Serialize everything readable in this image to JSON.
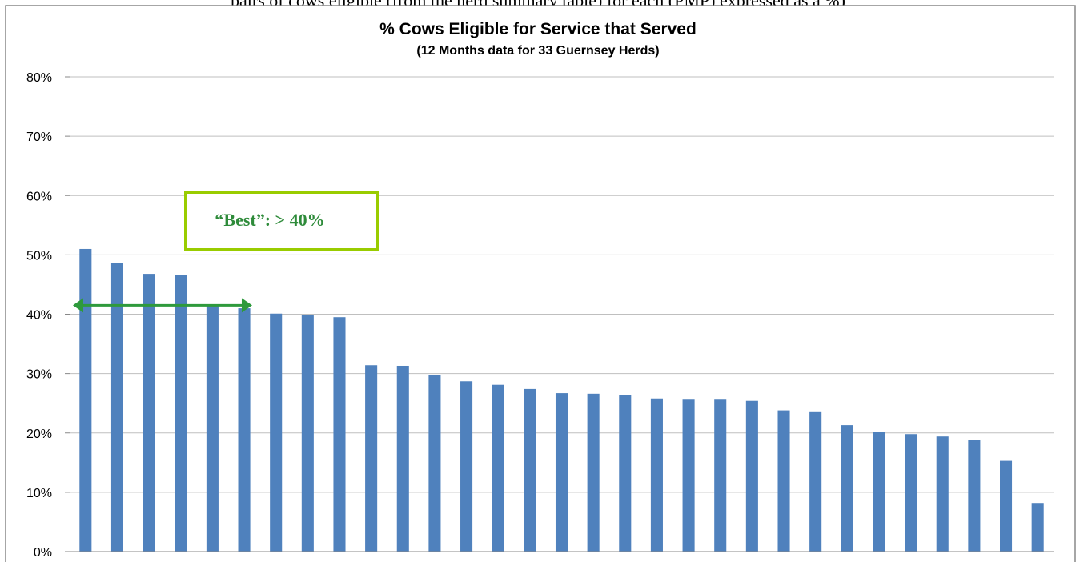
{
  "top_caption": "pairs of cows eligible (from the herd summary table) for each (PMP) expressed as a %)",
  "annotation": {
    "text": "“Best”: > 40%",
    "color": "#2e8b3a",
    "box_color": "#99cc00"
  },
  "colors": {
    "bar": "#4f81bd",
    "grid": "#bfbfbf",
    "arrow": "#2e9a3c"
  },
  "chart_data": {
    "type": "bar",
    "title": "% Cows Eligible for Service that Served",
    "subtitle": "(12 Months  data for 33 Guernsey  Herds)",
    "xlabel": "",
    "ylabel": "",
    "ylim": [
      0,
      80
    ],
    "ytick_step": 10,
    "ytick_labels": [
      "0%",
      "10%",
      "20%",
      "30%",
      "40%",
      "50%",
      "60%",
      "70%",
      "80%"
    ],
    "grid": true,
    "values": [
      51.0,
      48.6,
      46.8,
      46.6,
      41.5,
      41.0,
      40.1,
      39.8,
      39.5,
      31.4,
      31.3,
      29.7,
      28.7,
      28.1,
      27.4,
      26.7,
      26.6,
      26.4,
      25.8,
      25.6,
      25.6,
      25.4,
      23.8,
      23.5,
      21.3,
      20.2,
      19.8,
      19.4,
      18.8,
      15.3,
      8.2
    ],
    "threshold": 41.5
  }
}
